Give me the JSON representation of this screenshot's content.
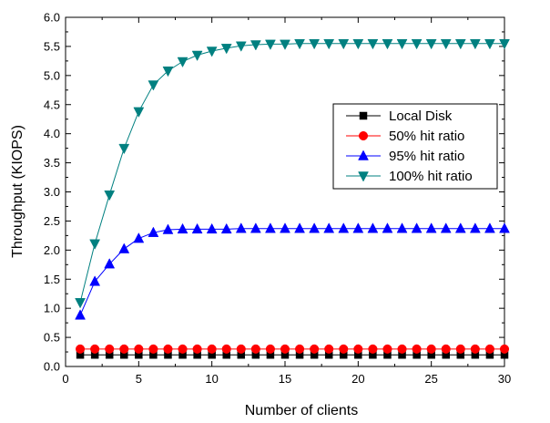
{
  "chart_data": {
    "type": "line",
    "title": "",
    "xlabel": "Number of clients",
    "ylabel": "Throughput (KIOPS)",
    "xlim": [
      0,
      30
    ],
    "ylim": [
      0.0,
      6.0
    ],
    "x_ticks": [
      0,
      5,
      10,
      15,
      20,
      25,
      30
    ],
    "y_ticks": [
      0.0,
      0.5,
      1.0,
      1.5,
      2.0,
      2.5,
      3.0,
      3.5,
      4.0,
      4.5,
      5.0,
      5.5,
      6.0
    ],
    "y_tick_labels": [
      "0.0",
      "0.5",
      "1.0",
      "1.5",
      "2.0",
      "2.5",
      "3.0",
      "3.5",
      "4.0",
      "4.5",
      "5.0",
      "5.5",
      "6.0"
    ],
    "grid": false,
    "legend_position": "right-middle",
    "x": [
      1,
      2,
      3,
      4,
      5,
      6,
      7,
      8,
      9,
      10,
      11,
      12,
      13,
      14,
      15,
      16,
      17,
      18,
      19,
      20,
      21,
      22,
      23,
      24,
      25,
      26,
      27,
      28,
      29,
      30
    ],
    "series": [
      {
        "name": "Local Disk",
        "marker": "square",
        "color": "#000000",
        "values": [
          0.2,
          0.2,
          0.2,
          0.2,
          0.2,
          0.2,
          0.2,
          0.2,
          0.2,
          0.2,
          0.2,
          0.2,
          0.2,
          0.2,
          0.2,
          0.2,
          0.2,
          0.2,
          0.2,
          0.2,
          0.2,
          0.2,
          0.2,
          0.2,
          0.2,
          0.2,
          0.2,
          0.2,
          0.2,
          0.2
        ]
      },
      {
        "name": "50% hit ratio",
        "marker": "circle",
        "color": "#ff0000",
        "values": [
          0.3,
          0.3,
          0.3,
          0.3,
          0.3,
          0.3,
          0.3,
          0.3,
          0.3,
          0.3,
          0.3,
          0.3,
          0.3,
          0.3,
          0.3,
          0.3,
          0.3,
          0.3,
          0.3,
          0.3,
          0.3,
          0.3,
          0.3,
          0.3,
          0.3,
          0.3,
          0.3,
          0.3,
          0.3,
          0.3
        ]
      },
      {
        "name": "95% hit ratio",
        "marker": "triangle-up",
        "color": "#0000ff",
        "values": [
          0.88,
          1.46,
          1.76,
          2.02,
          2.2,
          2.3,
          2.35,
          2.36,
          2.36,
          2.36,
          2.36,
          2.37,
          2.37,
          2.37,
          2.37,
          2.37,
          2.37,
          2.37,
          2.37,
          2.37,
          2.37,
          2.37,
          2.37,
          2.37,
          2.37,
          2.37,
          2.37,
          2.37,
          2.37,
          2.37
        ]
      },
      {
        "name": "100% hit ratio",
        "marker": "triangle-down",
        "color": "#008080",
        "values": [
          1.1,
          2.11,
          2.95,
          3.75,
          4.38,
          4.84,
          5.08,
          5.24,
          5.35,
          5.42,
          5.47,
          5.51,
          5.53,
          5.54,
          5.54,
          5.55,
          5.55,
          5.55,
          5.55,
          5.55,
          5.55,
          5.55,
          5.55,
          5.55,
          5.55,
          5.55,
          5.55,
          5.55,
          5.55,
          5.55
        ]
      }
    ]
  }
}
